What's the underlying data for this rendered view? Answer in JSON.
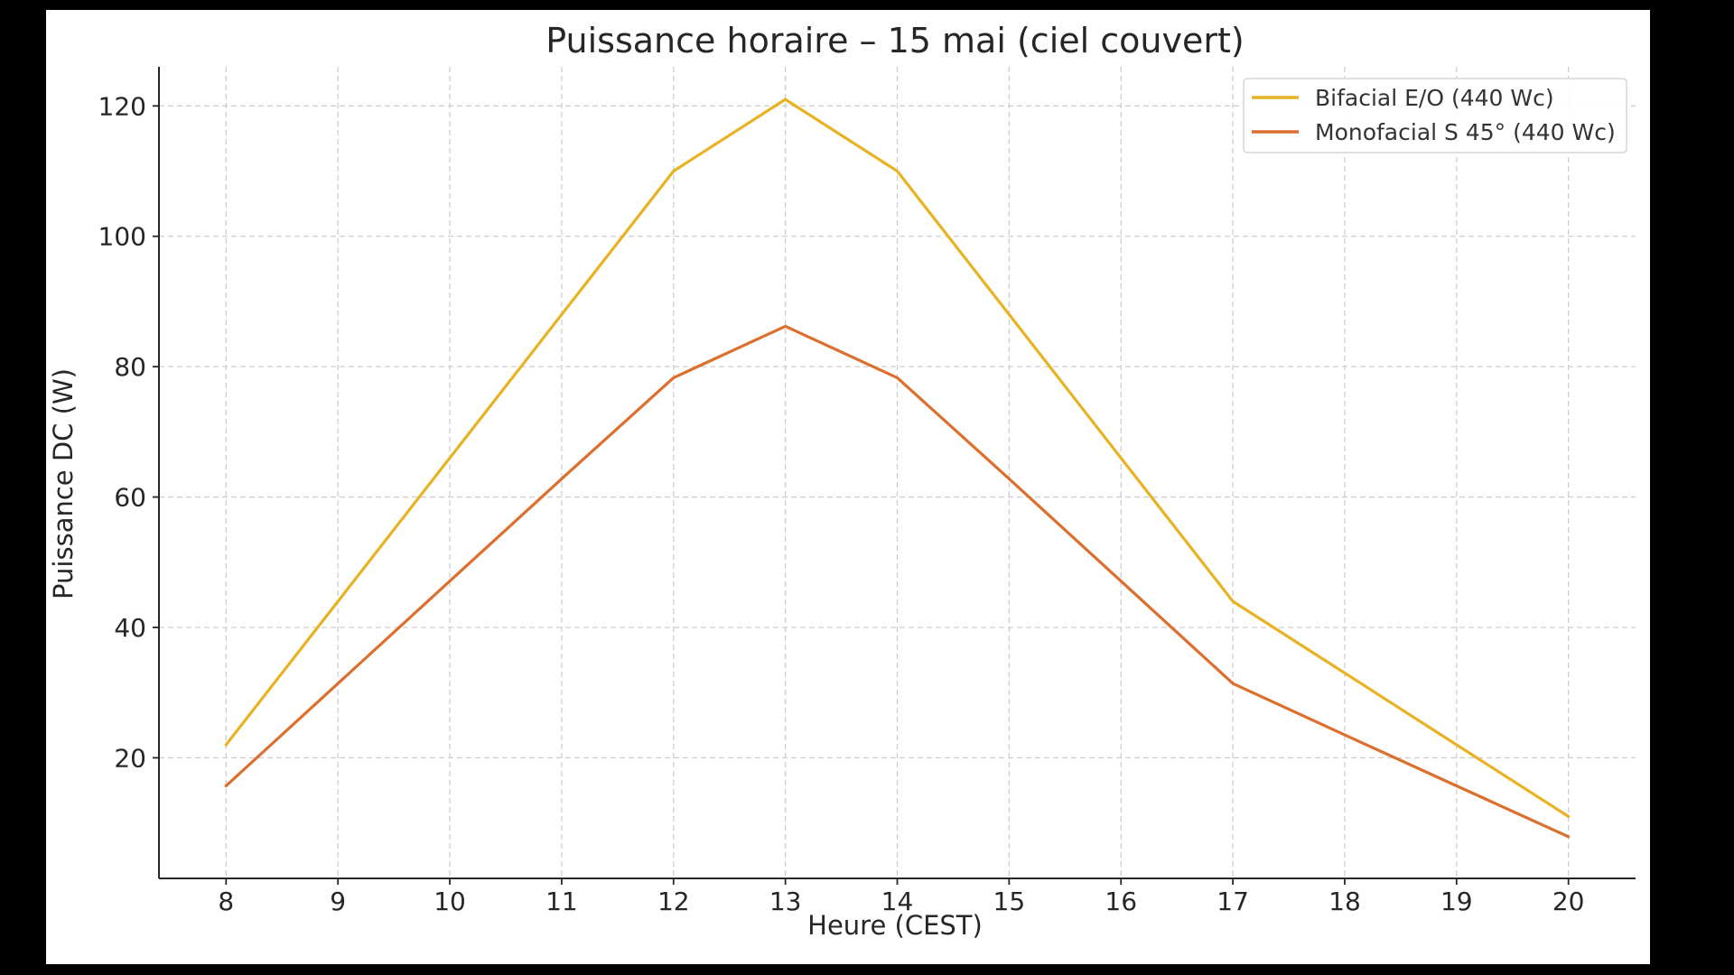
{
  "chart_data": {
    "type": "line",
    "title": "Puissance horaire – 15 mai (ciel couvert)",
    "xlabel": "Heure (CEST)",
    "ylabel": "Puissance DC (W)",
    "x": [
      8,
      9,
      10,
      11,
      12,
      13,
      14,
      15,
      16,
      17,
      18,
      19,
      20
    ],
    "xticks": [
      8,
      9,
      10,
      11,
      12,
      13,
      14,
      15,
      16,
      17,
      18,
      19,
      20
    ],
    "yticks": [
      20,
      40,
      60,
      80,
      100,
      120
    ],
    "xlim": [
      7.4,
      20.6
    ],
    "ylim": [
      1.5,
      126
    ],
    "grid": true,
    "legend_position": "top-right",
    "series": [
      {
        "name": "Bifacial E/O (440 Wc)",
        "color": "#e8b223",
        "values": [
          22.0,
          44.0,
          66.0,
          88.0,
          110.0,
          121.0,
          110.0,
          88.0,
          66.0,
          44.0,
          33.0,
          22.0,
          11.0
        ]
      },
      {
        "name": "Monofacial S 45° (440 Wc)",
        "color": "#dc6f2d",
        "values": [
          15.7,
          31.4,
          47.1,
          62.8,
          78.3,
          86.2,
          78.3,
          62.8,
          47.1,
          31.4,
          23.5,
          15.7,
          7.9
        ]
      }
    ]
  }
}
